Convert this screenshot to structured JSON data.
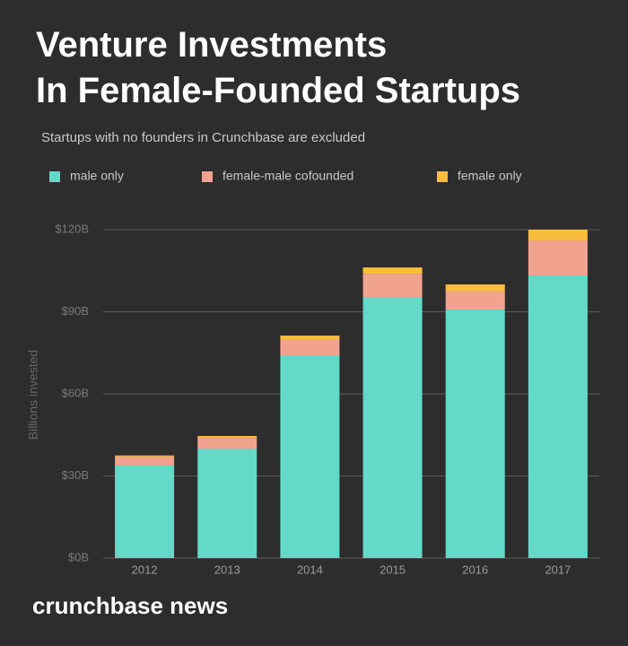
{
  "chart_data": {
    "type": "stacked-bar",
    "title": "Venture Investments In Female-Founded Startups",
    "subtitle": "Startups with no founders in Crunchbase are excluded",
    "y_label": "Billions invested",
    "brand": "crunchbase news",
    "categories": [
      "2012",
      "2013",
      "2014",
      "2015",
      "2016",
      "2017"
    ],
    "series": [
      {
        "name": "male only",
        "color": "#63d9c8",
        "values": [
          33.8,
          40,
          74.1,
          95.4,
          90.8,
          103.3
        ]
      },
      {
        "name": "female-male cofounded",
        "color": "#f2a38f",
        "values": [
          3.3,
          3.9,
          5.9,
          8.5,
          6.9,
          12.8
        ]
      },
      {
        "name": "female only",
        "color": "#f9bd3c",
        "values": [
          0.4,
          0.7,
          1.3,
          2.3,
          2.3,
          3.9
        ]
      }
    ],
    "ylim": [
      0,
      120
    ],
    "yticks": [
      {
        "value": 0,
        "label": "$0B"
      },
      {
        "value": 30,
        "label": "$30B"
      },
      {
        "value": 60,
        "label": "$60B"
      },
      {
        "value": 90,
        "label": "$90B"
      },
      {
        "value": 120,
        "label": "$120B"
      }
    ],
    "grid": true,
    "legend": "top"
  }
}
